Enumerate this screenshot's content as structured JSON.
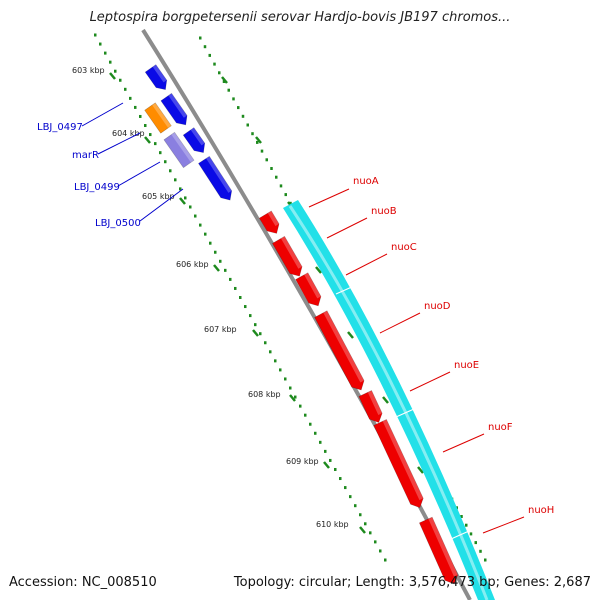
{
  "title": "Leptospira borgpetersenii serovar Hardjo-bovis JB197 chromos...",
  "footer": {
    "accession": "Accession: NC_008510",
    "topology": "Topology: circular; Length: 3,576,473 bp; Genes: 2,687"
  },
  "colors": {
    "backbone": "#8c8c8c",
    "tick": "#1e8a1e",
    "forward_gene": "#0a0ae6",
    "reverse_gene": "#ee0000",
    "operon_bar": "#22e0e8",
    "orange_gene": "#ff8c00",
    "purple_gene": "#8a7fe0",
    "blue_label": "#0000cc",
    "red_label": "#dd0000"
  },
  "ticks": [
    {
      "label": "603 kbp"
    },
    {
      "label": "604 kbp"
    },
    {
      "label": "605 kbp"
    },
    {
      "label": "606 kbp"
    },
    {
      "label": "607 kbp"
    },
    {
      "label": "608 kbp"
    },
    {
      "label": "609 kbp"
    },
    {
      "label": "610 kbp"
    }
  ],
  "left_genes": [
    {
      "label": "LBJ_0497",
      "color": "#0a0ae6"
    },
    {
      "label": "marR",
      "color": "#0000cc"
    },
    {
      "label": "LBJ_0499",
      "color": "#0000cc"
    },
    {
      "label": "LBJ_0500",
      "color": "#0000cc"
    }
  ],
  "right_genes": [
    {
      "label": "nuoA"
    },
    {
      "label": "nuoB"
    },
    {
      "label": "nuoC"
    },
    {
      "label": "nuoD"
    },
    {
      "label": "nuoE"
    },
    {
      "label": "nuoF"
    },
    {
      "label": "nuoH"
    }
  ]
}
